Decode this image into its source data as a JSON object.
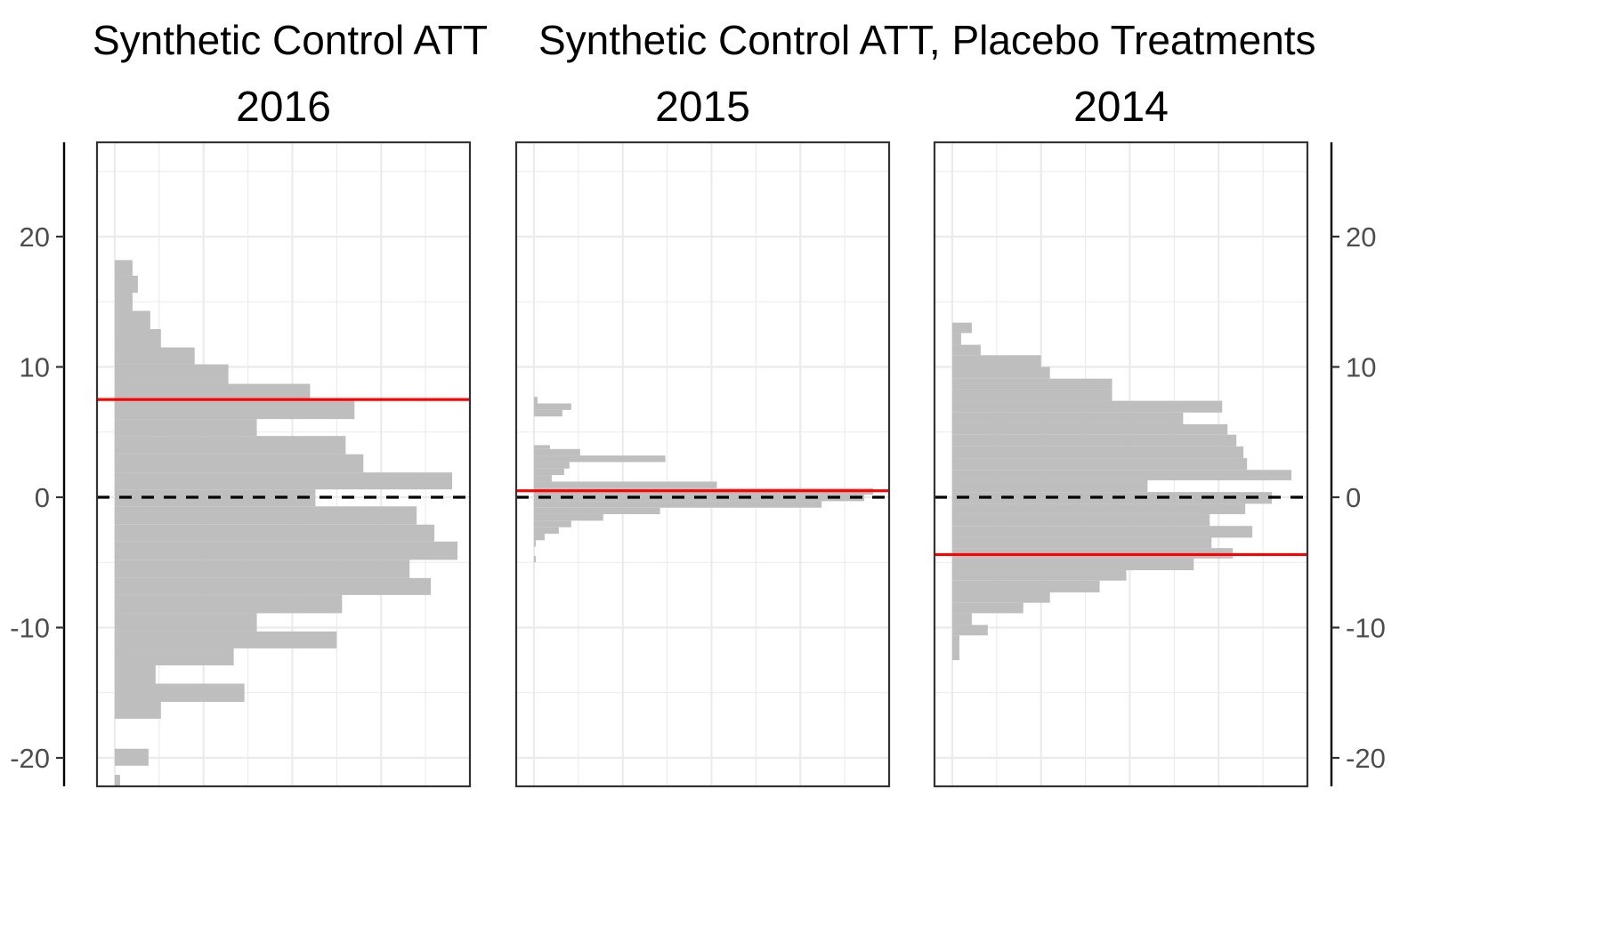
{
  "titles": {
    "left": "Synthetic Control ATT",
    "right": "Synthetic Control ATT, Placebo Treatments"
  },
  "colors": {
    "bar": "#bebebe",
    "att_line": "#ff0000",
    "zero_line": "#000000",
    "grid": "#ebebeb",
    "panel_border": "#333333"
  },
  "chart_data": {
    "type": "bar",
    "orientation": "horizontal-histogram",
    "ylim": [
      -22.5,
      27
    ],
    "xlim": [
      -1,
      20
    ],
    "y_ticks": [
      -20,
      -10,
      0,
      10,
      20
    ],
    "y_tick_labels": [
      "-20",
      "-10",
      "0",
      "10",
      "20"
    ],
    "x_grid": [
      2.5,
      5,
      7.5,
      10,
      12.5,
      15,
      17.5
    ],
    "grid": true,
    "panels": [
      {
        "label": "2016",
        "att": 7.5,
        "bins": [
          {
            "y0": 17.0,
            "y1": 18.2,
            "count": 1.0
          },
          {
            "y0": 15.7,
            "y1": 17.0,
            "count": 1.3
          },
          {
            "y0": 14.3,
            "y1": 15.7,
            "count": 1.0
          },
          {
            "y0": 12.9,
            "y1": 14.3,
            "count": 2.0
          },
          {
            "y0": 11.5,
            "y1": 12.9,
            "count": 2.6
          },
          {
            "y0": 10.2,
            "y1": 11.5,
            "count": 4.5
          },
          {
            "y0": 8.7,
            "y1": 10.2,
            "count": 6.4
          },
          {
            "y0": 7.4,
            "y1": 8.7,
            "count": 11.0
          },
          {
            "y0": 6.0,
            "y1": 7.4,
            "count": 13.5
          },
          {
            "y0": 4.7,
            "y1": 6.0,
            "count": 8.0
          },
          {
            "y0": 3.3,
            "y1": 4.7,
            "count": 13.0
          },
          {
            "y0": 1.9,
            "y1": 3.3,
            "count": 14.0
          },
          {
            "y0": 0.6,
            "y1": 1.9,
            "count": 19.0
          },
          {
            "y0": -0.7,
            "y1": 0.6,
            "count": 11.3
          },
          {
            "y0": -2.1,
            "y1": -0.7,
            "count": 17.0
          },
          {
            "y0": -3.4,
            "y1": -2.1,
            "count": 18.0
          },
          {
            "y0": -4.8,
            "y1": -3.4,
            "count": 19.3
          },
          {
            "y0": -6.2,
            "y1": -4.8,
            "count": 16.6
          },
          {
            "y0": -7.5,
            "y1": -6.2,
            "count": 17.8
          },
          {
            "y0": -8.9,
            "y1": -7.5,
            "count": 12.8
          },
          {
            "y0": -10.3,
            "y1": -8.9,
            "count": 8.0
          },
          {
            "y0": -11.6,
            "y1": -10.3,
            "count": 12.5
          },
          {
            "y0": -12.9,
            "y1": -11.6,
            "count": 6.7
          },
          {
            "y0": -14.3,
            "y1": -12.9,
            "count": 2.3
          },
          {
            "y0": -15.7,
            "y1": -14.3,
            "count": 7.3
          },
          {
            "y0": -17.0,
            "y1": -15.7,
            "count": 2.6
          },
          {
            "y0": -20.6,
            "y1": -19.3,
            "count": 1.9
          },
          {
            "y0": -22.5,
            "y1": -21.3,
            "count": 0.3
          }
        ]
      },
      {
        "label": "2015",
        "att": 0.5,
        "bins": [
          {
            "y0": 7.2,
            "y1": 7.7,
            "count": 0.2
          },
          {
            "y0": 6.7,
            "y1": 7.2,
            "count": 2.1
          },
          {
            "y0": 6.2,
            "y1": 6.7,
            "count": 1.6
          },
          {
            "y0": 3.7,
            "y1": 4.0,
            "count": 0.9
          },
          {
            "y0": 3.2,
            "y1": 3.7,
            "count": 2.6
          },
          {
            "y0": 2.7,
            "y1": 3.2,
            "count": 7.4
          },
          {
            "y0": 2.2,
            "y1": 2.7,
            "count": 2.0
          },
          {
            "y0": 1.7,
            "y1": 2.2,
            "count": 1.7
          },
          {
            "y0": 1.2,
            "y1": 1.7,
            "count": 1.0
          },
          {
            "y0": 0.7,
            "y1": 1.2,
            "count": 10.3
          },
          {
            "y0": 0.2,
            "y1": 0.7,
            "count": 19.1
          },
          {
            "y0": -0.3,
            "y1": 0.2,
            "count": 18.6
          },
          {
            "y0": -0.8,
            "y1": -0.3,
            "count": 16.2
          },
          {
            "y0": -1.3,
            "y1": -0.8,
            "count": 7.1
          },
          {
            "y0": -1.8,
            "y1": -1.3,
            "count": 3.9
          },
          {
            "y0": -2.3,
            "y1": -1.8,
            "count": 2.1
          },
          {
            "y0": -2.8,
            "y1": -2.3,
            "count": 1.4
          },
          {
            "y0": -3.3,
            "y1": -2.8,
            "count": 0.6
          },
          {
            "y0": -3.8,
            "y1": -3.3,
            "count": 0.1
          },
          {
            "y0": -5.0,
            "y1": -4.5,
            "count": 0.1
          }
        ]
      },
      {
        "label": "2014",
        "att": -4.4,
        "bins": [
          {
            "y0": 12.6,
            "y1": 13.4,
            "count": 1.1
          },
          {
            "y0": 11.7,
            "y1": 12.6,
            "count": 0.5
          },
          {
            "y0": 10.9,
            "y1": 11.7,
            "count": 1.6
          },
          {
            "y0": 10.0,
            "y1": 10.9,
            "count": 5.0
          },
          {
            "y0": 9.1,
            "y1": 10.0,
            "count": 5.5
          },
          {
            "y0": 8.3,
            "y1": 9.1,
            "count": 9.0
          },
          {
            "y0": 7.4,
            "y1": 8.3,
            "count": 9.0
          },
          {
            "y0": 6.5,
            "y1": 7.4,
            "count": 15.2
          },
          {
            "y0": 5.6,
            "y1": 6.5,
            "count": 13.0
          },
          {
            "y0": 4.8,
            "y1": 5.6,
            "count": 15.5
          },
          {
            "y0": 3.9,
            "y1": 4.8,
            "count": 16.0
          },
          {
            "y0": 3.0,
            "y1": 3.9,
            "count": 16.4
          },
          {
            "y0": 2.1,
            "y1": 3.0,
            "count": 16.6
          },
          {
            "y0": 1.3,
            "y1": 2.1,
            "count": 19.1
          },
          {
            "y0": 0.4,
            "y1": 1.3,
            "count": 11.0
          },
          {
            "y0": -0.5,
            "y1": 0.4,
            "count": 18.0
          },
          {
            "y0": -1.3,
            "y1": -0.5,
            "count": 16.5
          },
          {
            "y0": -2.2,
            "y1": -1.3,
            "count": 14.5
          },
          {
            "y0": -3.1,
            "y1": -2.2,
            "count": 16.9
          },
          {
            "y0": -3.9,
            "y1": -3.1,
            "count": 14.6
          },
          {
            "y0": -4.7,
            "y1": -3.9,
            "count": 15.8
          },
          {
            "y0": -5.6,
            "y1": -4.7,
            "count": 13.6
          },
          {
            "y0": -6.4,
            "y1": -5.6,
            "count": 9.8
          },
          {
            "y0": -7.3,
            "y1": -6.4,
            "count": 8.3
          },
          {
            "y0": -8.1,
            "y1": -7.3,
            "count": 5.5
          },
          {
            "y0": -8.9,
            "y1": -8.1,
            "count": 4.0
          },
          {
            "y0": -9.8,
            "y1": -8.9,
            "count": 1.1
          },
          {
            "y0": -10.6,
            "y1": -9.8,
            "count": 2.0
          },
          {
            "y0": -12.5,
            "y1": -10.6,
            "count": 0.4
          }
        ]
      }
    ]
  }
}
